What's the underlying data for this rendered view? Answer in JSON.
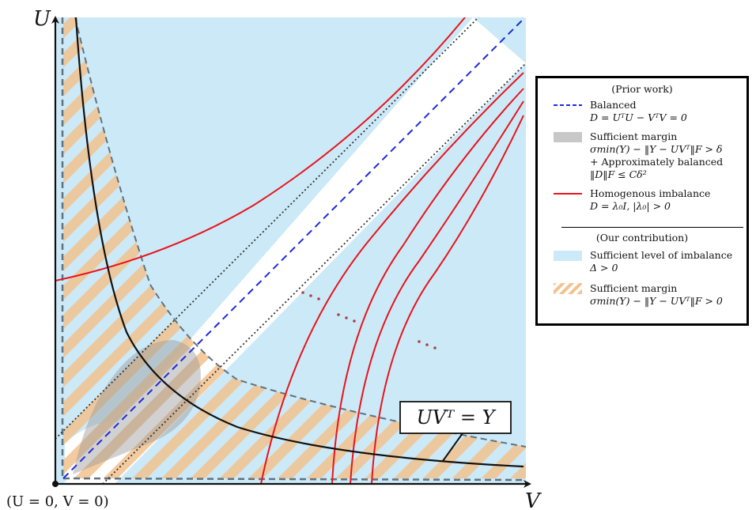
{
  "axes": {
    "y_label": "U",
    "x_label": "V",
    "origin_label": "(U = 0, V = 0)"
  },
  "curve_label": "UVᵀ = Y",
  "legend": {
    "prior_heading": "(Prior work)",
    "balanced_label": "Balanced",
    "balanced_eq": "D = UᵀU − VᵀV = 0",
    "margin_label": "Sufficient margin",
    "margin_eq": "σmin(Y) − ‖Y − UVᵀ‖F > δ",
    "approx_label": "+ Approximately balanced",
    "approx_eq": "‖D‖F ≤ Cδ²",
    "homog_label": "Homogenous imbalance",
    "homog_eq": "D = λ₀I, |λ₀| > 0",
    "ours_heading": "(Our contribution)",
    "imbalance_label": "Sufficient level of imbalance",
    "imbalance_eq": "Δ > 0",
    "ours_margin_label": "Sufficient margin",
    "ours_margin_eq": "σmin(Y) − ‖Y − UVᵀ‖F > 0"
  },
  "colors": {
    "imbalance_region": "#cce9f8",
    "margin_hatch": "#f2c28e",
    "balanced_line": "#1f2bd6",
    "homogenous_curve": "#e8141b",
    "gray_region": "#9a9a9a",
    "dashed_boundary": "#5f7280"
  }
}
